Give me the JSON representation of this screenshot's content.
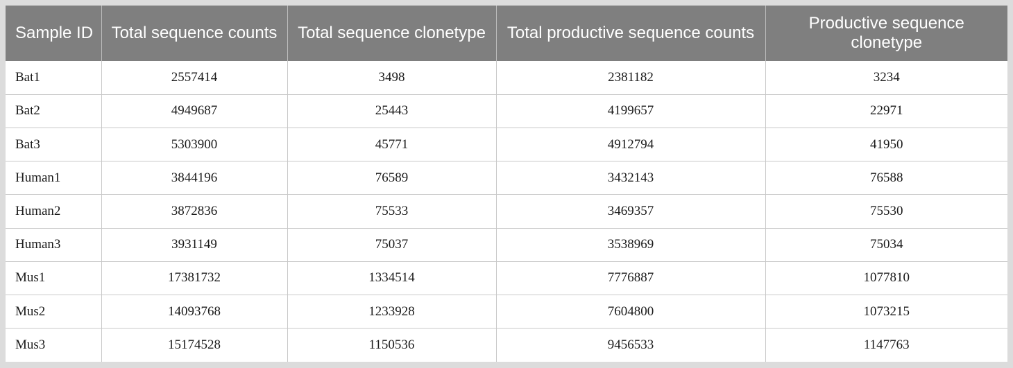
{
  "table": {
    "headers": [
      "Sample ID",
      "Total sequence counts",
      "Total sequence clonetype",
      "Total productive sequence counts",
      "Productive sequence clonetype"
    ],
    "rows": [
      [
        "Bat1",
        "2557414",
        "3498",
        "2381182",
        "3234"
      ],
      [
        "Bat2",
        "4949687",
        "25443",
        "4199657",
        "22971"
      ],
      [
        "Bat3",
        "5303900",
        "45771",
        "4912794",
        "41950"
      ],
      [
        "Human1",
        "3844196",
        "76589",
        "3432143",
        "76588"
      ],
      [
        "Human2",
        "3872836",
        "75533",
        "3469357",
        "75530"
      ],
      [
        "Human3",
        "3931149",
        "75037",
        "3538969",
        "75034"
      ],
      [
        "Mus1",
        "17381732",
        "1334514",
        "7776887",
        "1077810"
      ],
      [
        "Mus2",
        "14093768",
        "1233928",
        "7604800",
        "1073215"
      ],
      [
        "Mus3",
        "15174528",
        "1150536",
        "9456533",
        "1147763"
      ]
    ]
  },
  "colors": {
    "header_background": "#7f7f7f",
    "header_text": "#ffffff",
    "frame": "#dcdcdc",
    "grid": "#c8c8c8"
  }
}
